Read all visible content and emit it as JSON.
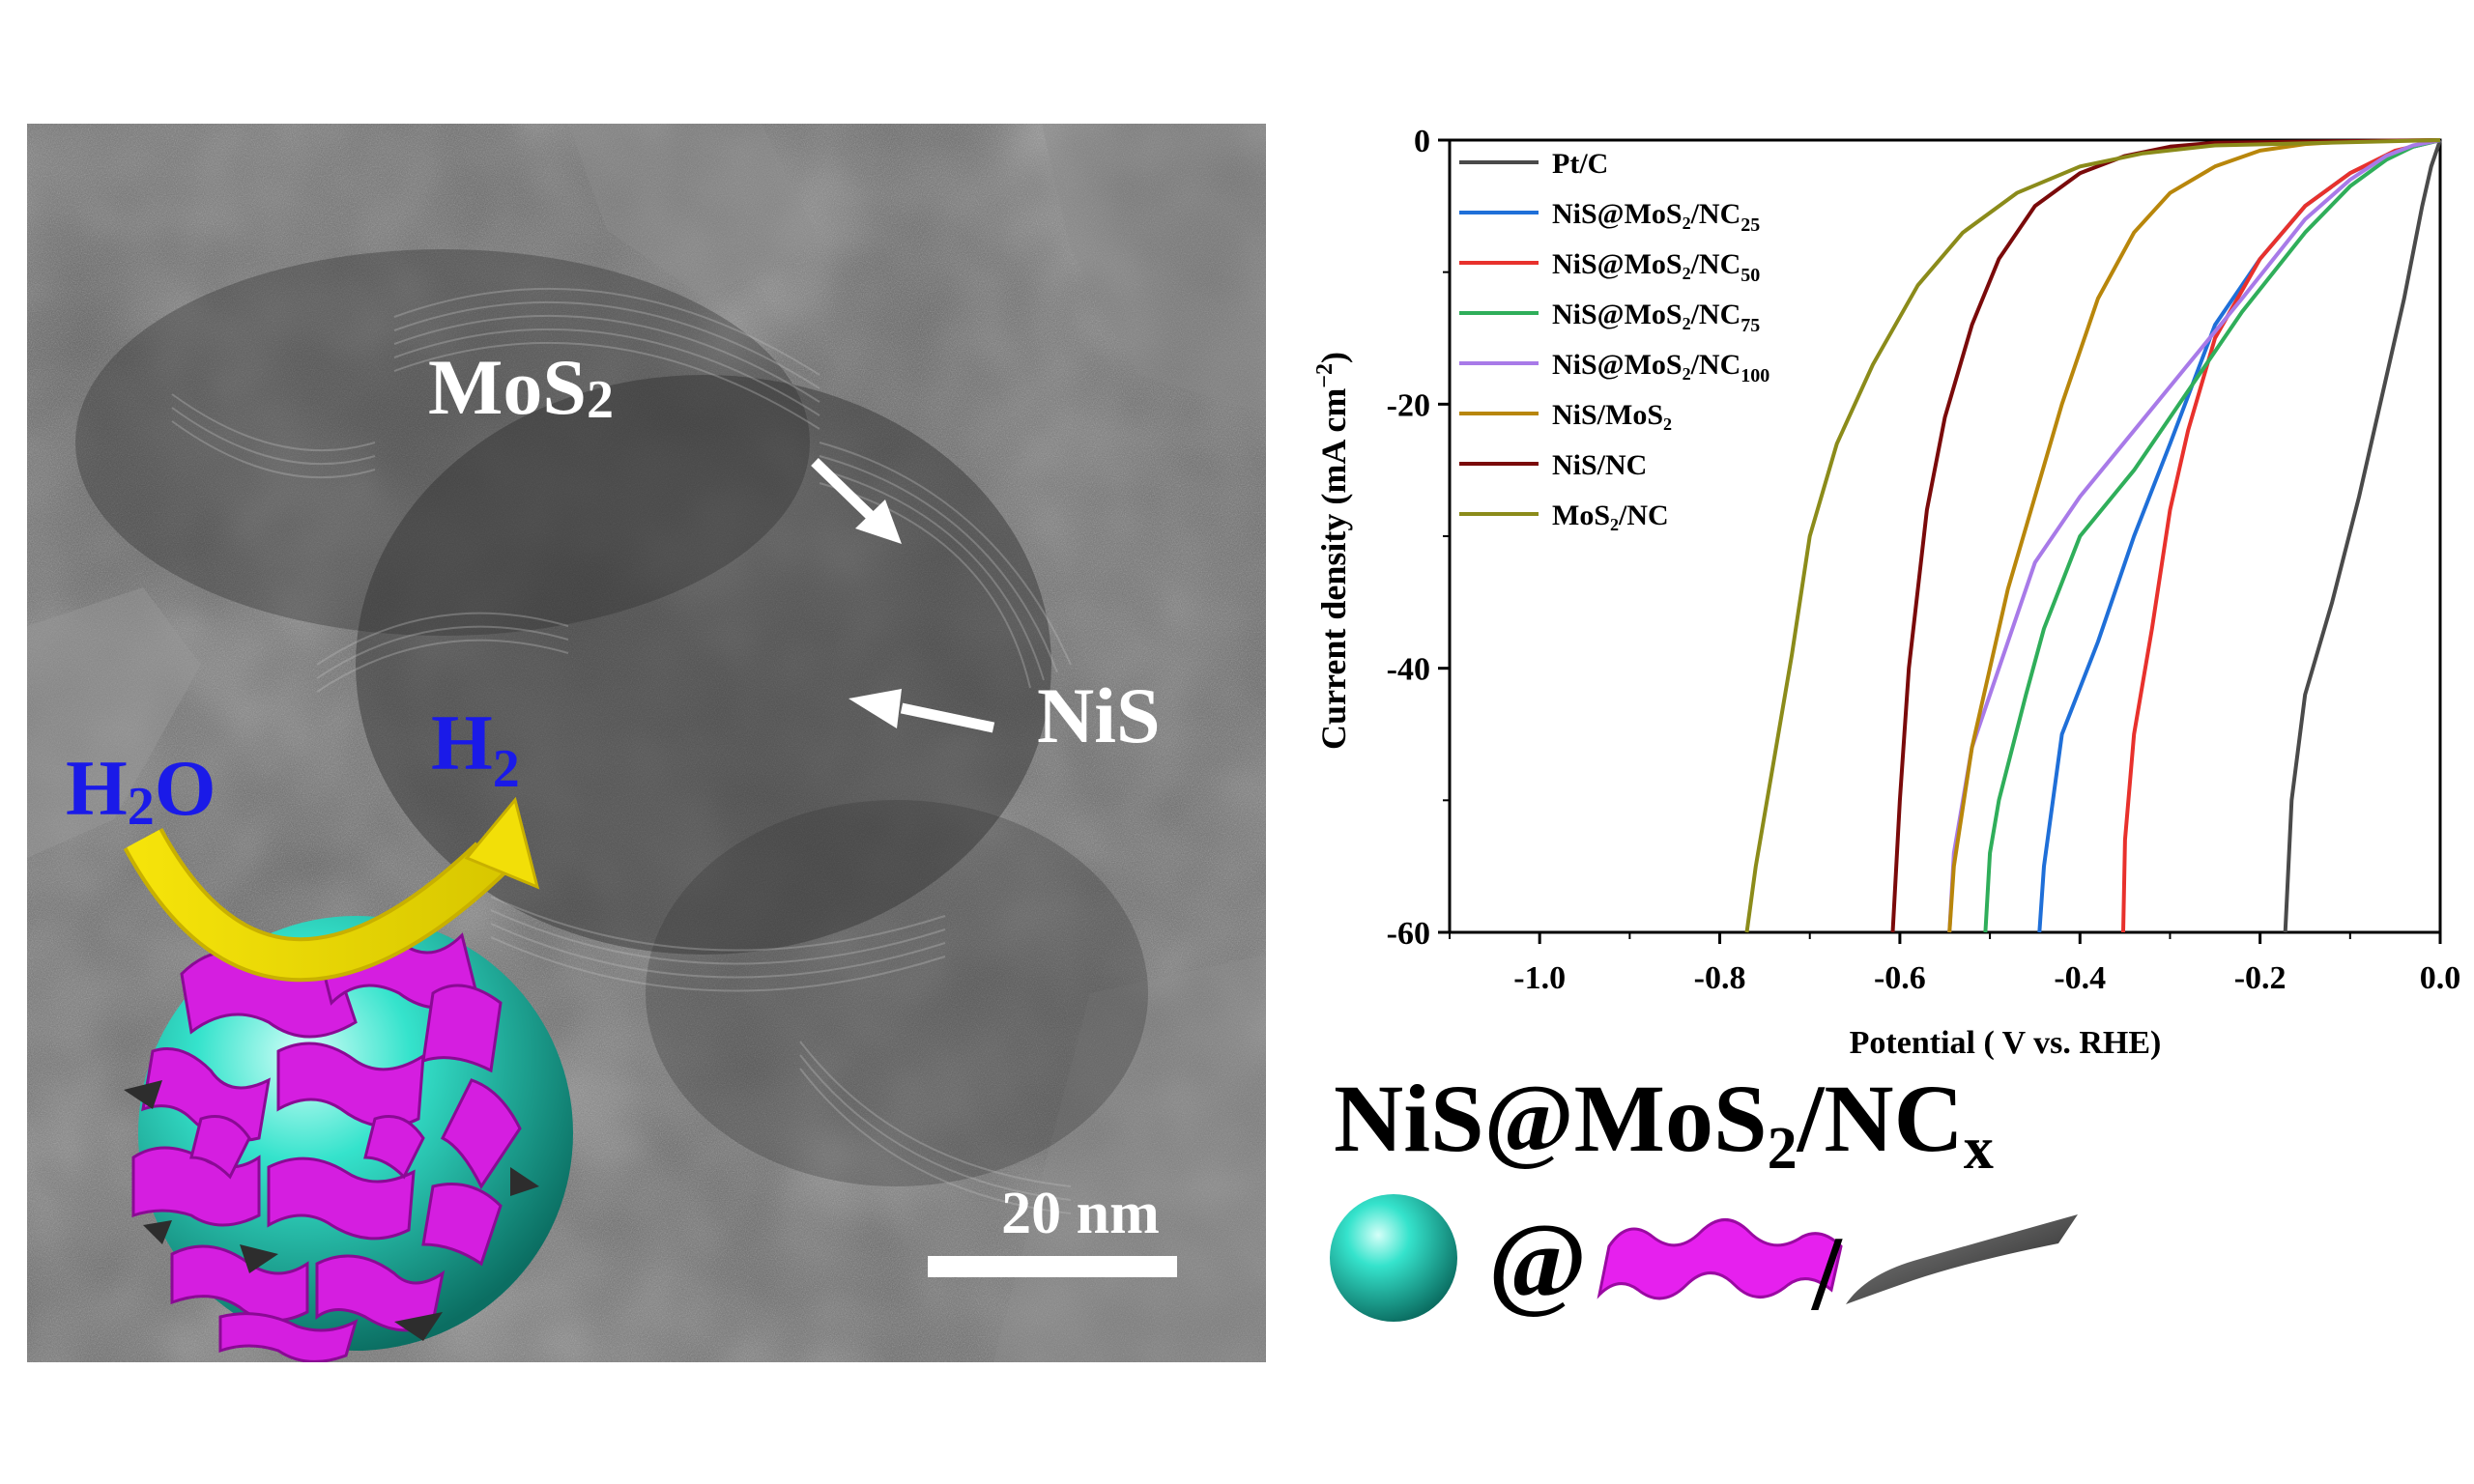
{
  "tem": {
    "label_mos2": "MoS",
    "label_mos2_sub": "2",
    "label_nis": "NiS",
    "label_h2o_a": "H",
    "label_h2o_sub": "2",
    "label_h2o_b": "O",
    "label_h2": "H",
    "label_h2_sub": "2",
    "scale_bar": "20 nm"
  },
  "scheme": {
    "title_main": "NiS@MoS",
    "title_sub1": "2",
    "title_mid": "/NC",
    "title_sub2": "x",
    "at_symbol": "@",
    "slash": "/",
    "colors": {
      "nis_sphere": "#20d8c4",
      "mos2_sheet": "#e020e8",
      "nc_sheet": "#3a3a3a"
    }
  },
  "chart_data": {
    "type": "line",
    "xlabel": "Potential ( V vs. RHE)",
    "ylabel": "Current density (mA cm",
    "ylabel_sup": "−2",
    "ylabel_end": ")",
    "xlim": [
      -1.1,
      0.0
    ],
    "ylim": [
      -60,
      0
    ],
    "xticks": [
      -1.0,
      -0.8,
      -0.6,
      -0.4,
      -0.2,
      0.0
    ],
    "xtick_labels": [
      "-1.0",
      "-0.8",
      "-0.6",
      "-0.4",
      "-0.2",
      "0.0"
    ],
    "yticks": [
      0,
      -20,
      -40,
      -60
    ],
    "ytick_labels": [
      "0",
      "-20",
      "-40",
      "-60"
    ],
    "legend_position": "top-left inside",
    "series": [
      {
        "name": "Pt/C",
        "name_sub": "",
        "color": "#4a4a4a",
        "x": [
          -0.172,
          -0.165,
          -0.15,
          -0.12,
          -0.09,
          -0.06,
          -0.04,
          -0.02,
          -0.01,
          0.0
        ],
        "y": [
          -60,
          -50,
          -42,
          -35,
          -27,
          -18,
          -12,
          -5,
          -2,
          0
        ]
      },
      {
        "name": "NiS@MoS₂/NC",
        "name_sub": "25",
        "color": "#1f6fd8",
        "x": [
          -0.445,
          -0.44,
          -0.42,
          -0.38,
          -0.34,
          -0.3,
          -0.25,
          -0.2,
          -0.15,
          -0.1,
          -0.06,
          -0.03,
          0.0
        ],
        "y": [
          -60,
          -55,
          -45,
          -38,
          -30,
          -23,
          -14,
          -9,
          -5,
          -2.5,
          -1.2,
          -0.5,
          0
        ]
      },
      {
        "name": "NiS@MoS₂/NC",
        "name_sub": "50",
        "color": "#e8312c",
        "x": [
          -0.352,
          -0.35,
          -0.34,
          -0.32,
          -0.3,
          -0.28,
          -0.25,
          -0.2,
          -0.15,
          -0.1,
          -0.05,
          0.0
        ],
        "y": [
          -60,
          -53,
          -45,
          -37,
          -28,
          -22,
          -15,
          -9,
          -5,
          -2.5,
          -0.8,
          0
        ]
      },
      {
        "name": "NiS@MoS₂/NC",
        "name_sub": "75",
        "color": "#2fae5a",
        "x": [
          -0.505,
          -0.5,
          -0.49,
          -0.46,
          -0.44,
          -0.4,
          -0.34,
          -0.28,
          -0.22,
          -0.15,
          -0.1,
          -0.06,
          -0.03,
          0.0
        ],
        "y": [
          -60,
          -54,
          -50,
          -42,
          -37,
          -30,
          -25,
          -19,
          -13,
          -7,
          -3.5,
          -1.5,
          -0.5,
          0
        ]
      },
      {
        "name": "NiS@MoS₂/NC",
        "name_sub": "100",
        "color": "#a87ae8",
        "x": [
          -0.545,
          -0.54,
          -0.52,
          -0.49,
          -0.45,
          -0.4,
          -0.34,
          -0.28,
          -0.22,
          -0.15,
          -0.1,
          -0.06,
          -0.03,
          0.0
        ],
        "y": [
          -60,
          -54,
          -46,
          -40,
          -32,
          -27,
          -22,
          -17,
          -12,
          -6,
          -3,
          -1.2,
          -0.4,
          0
        ]
      },
      {
        "name": "NiS/MoS₂",
        "name_sub": "",
        "color": "#b8860b",
        "x": [
          -0.545,
          -0.54,
          -0.52,
          -0.5,
          -0.48,
          -0.45,
          -0.42,
          -0.38,
          -0.34,
          -0.3,
          -0.25,
          -0.2,
          -0.15,
          -0.1,
          0.0
        ],
        "y": [
          -60,
          -55,
          -46,
          -40,
          -34,
          -27,
          -20,
          -12,
          -7,
          -4,
          -2,
          -0.8,
          -0.3,
          -0.1,
          0
        ]
      },
      {
        "name": "NiS/NC",
        "name_sub": "",
        "color": "#7a0a0a",
        "x": [
          -0.608,
          -0.6,
          -0.59,
          -0.57,
          -0.55,
          -0.52,
          -0.49,
          -0.45,
          -0.4,
          -0.35,
          -0.3,
          -0.25,
          0.0
        ],
        "y": [
          -60,
          -50,
          -40,
          -28,
          -21,
          -14,
          -9,
          -5,
          -2.5,
          -1.2,
          -0.5,
          -0.2,
          0
        ]
      },
      {
        "name": "MoS₂/NC",
        "name_sub": "",
        "color": "#8b8b1a",
        "x": [
          -0.77,
          -0.76,
          -0.74,
          -0.72,
          -0.7,
          -0.67,
          -0.63,
          -0.58,
          -0.53,
          -0.47,
          -0.4,
          -0.33,
          -0.25,
          0.0
        ],
        "y": [
          -60,
          -55,
          -47,
          -39,
          -30,
          -23,
          -17,
          -11,
          -7,
          -4,
          -2,
          -1,
          -0.4,
          0
        ]
      }
    ]
  }
}
